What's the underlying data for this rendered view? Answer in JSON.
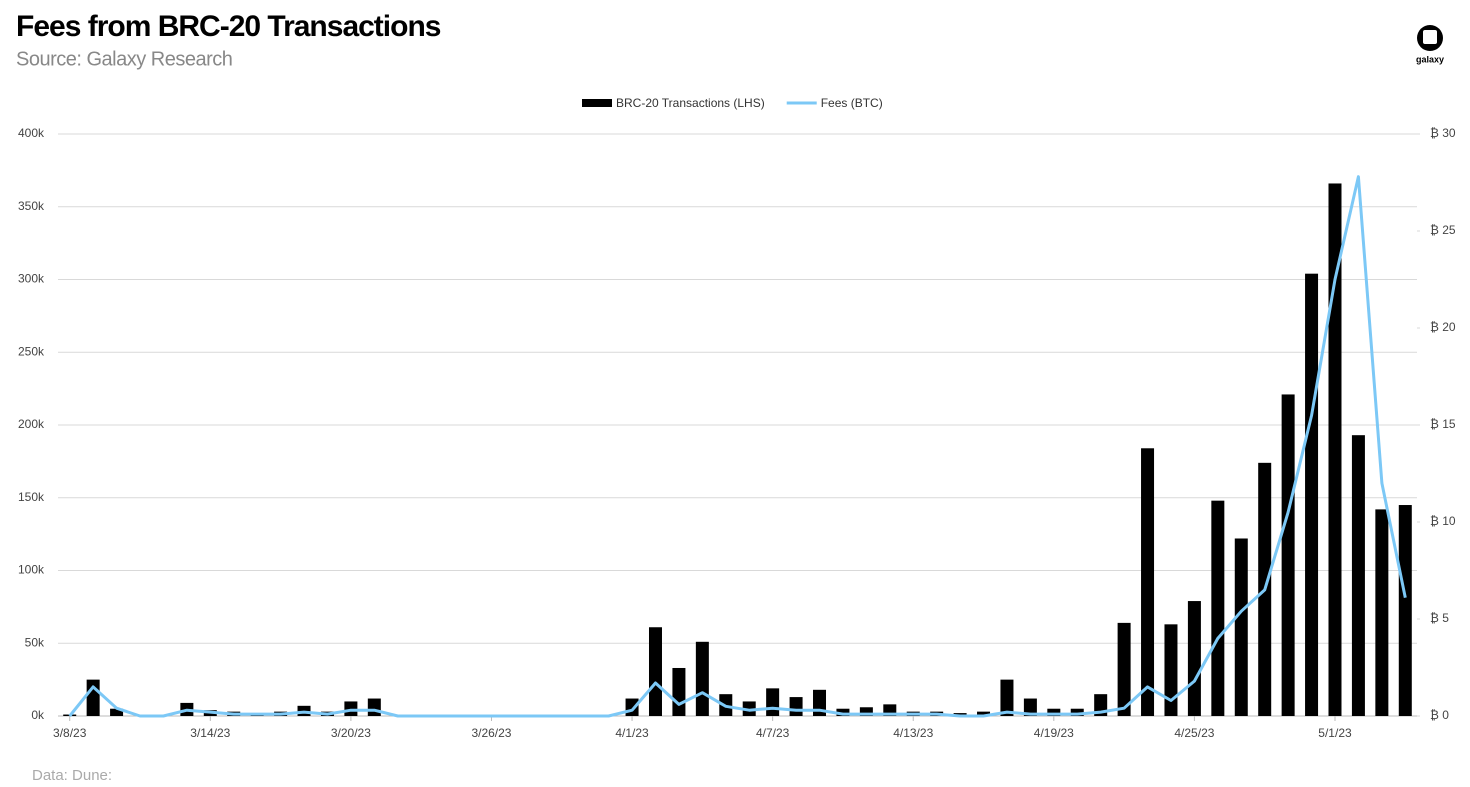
{
  "chart_data": {
    "type": "combo",
    "title": "Fees from BRC-20 Transactions",
    "subtitle": "Source: Galaxy Research",
    "source_note": "Data: Dune:",
    "logo": "galaxy",
    "legend": "top",
    "grid": true,
    "categories": [
      "3/8/23",
      null,
      null,
      null,
      null,
      null,
      "3/14/23",
      null,
      null,
      null,
      null,
      null,
      "3/20/23",
      null,
      null,
      null,
      null,
      null,
      "3/26/23",
      null,
      null,
      null,
      null,
      null,
      "4/1/23",
      null,
      null,
      null,
      null,
      null,
      "4/7/23",
      null,
      null,
      null,
      null,
      null,
      "4/13/23",
      null,
      null,
      null,
      null,
      null,
      "4/19/23",
      null,
      null,
      null,
      null,
      null,
      "4/25/23",
      null,
      null,
      null,
      null,
      null,
      "5/1/23",
      null,
      null,
      null
    ],
    "series": [
      {
        "name": "BRC-20 Transactions (LHS)",
        "type": "bar",
        "color": "#000000",
        "values": [
          1000,
          25000,
          5000,
          0,
          0,
          9000,
          4000,
          3000,
          1000,
          3000,
          7000,
          3000,
          10000,
          12000,
          0,
          0,
          0,
          0,
          0,
          0,
          0,
          0,
          0,
          0,
          12000,
          61000,
          33000,
          51000,
          15000,
          10000,
          19000,
          13000,
          18000,
          5000,
          6000,
          8000,
          3000,
          3000,
          2000,
          3000,
          25000,
          12000,
          5000,
          5000,
          15000,
          64000,
          184000,
          63000,
          79000,
          148000,
          122000,
          174000,
          221000,
          304000,
          366000,
          193000,
          142000,
          145000
        ]
      },
      {
        "name": "Fees (BTC)",
        "type": "line",
        "axis": "y2",
        "color": "#7cc8f6",
        "values": [
          0,
          1.5,
          0.4,
          0,
          0,
          0.3,
          0.2,
          0.1,
          0.1,
          0.1,
          0.2,
          0.1,
          0.3,
          0.3,
          0,
          0,
          0,
          0,
          0,
          0,
          0,
          0,
          0,
          0,
          0.3,
          1.7,
          0.6,
          1.2,
          0.5,
          0.3,
          0.4,
          0.3,
          0.3,
          0.1,
          0.1,
          0.1,
          0.1,
          0.1,
          0,
          0,
          0.2,
          0.1,
          0.1,
          0.1,
          0.2,
          0.4,
          1.5,
          0.8,
          1.8,
          4,
          5.4,
          6.5,
          10.5,
          15.5,
          22.5,
          27.8,
          12,
          6.1
        ]
      }
    ],
    "ylim": [
      0,
      400000
    ],
    "yticks": [
      {
        "value": 0,
        "label": "0k"
      },
      {
        "value": 50000,
        "label": "50k"
      },
      {
        "value": 100000,
        "label": "100k"
      },
      {
        "value": 150000,
        "label": "150k"
      },
      {
        "value": 200000,
        "label": "200k"
      },
      {
        "value": 250000,
        "label": "250k"
      },
      {
        "value": 300000,
        "label": "300k"
      },
      {
        "value": 350000,
        "label": "350k"
      },
      {
        "value": 400000,
        "label": "400k"
      }
    ],
    "y2lim": [
      0,
      30
    ],
    "y2ticks": [
      {
        "value": 0,
        "label": "₿ 0"
      },
      {
        "value": 5,
        "label": "₿ 5"
      },
      {
        "value": 10,
        "label": "₿ 10"
      },
      {
        "value": 15,
        "label": "₿ 15"
      },
      {
        "value": 20,
        "label": "₿ 20"
      },
      {
        "value": 25,
        "label": "₿ 25"
      },
      {
        "value": 30,
        "label": "₿ 30"
      }
    ]
  }
}
